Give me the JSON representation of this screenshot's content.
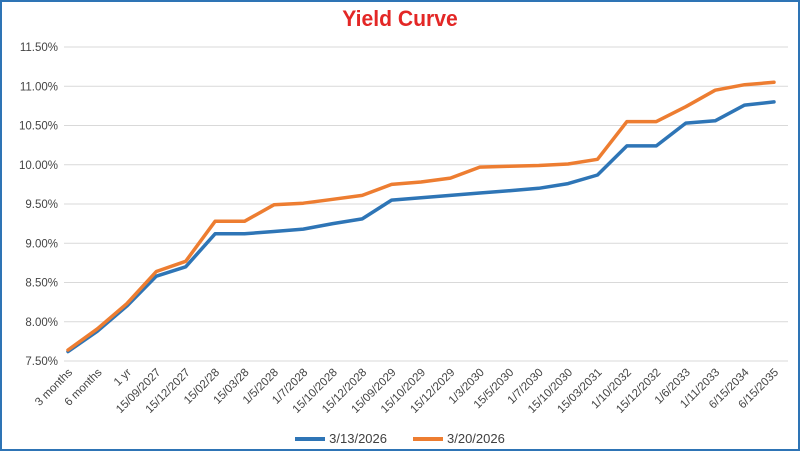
{
  "chart": {
    "title_color": "#E32726",
    "border_color": "#2E74B5",
    "grid_color": "#D9D9D9",
    "axis_label_color": "#444444"
  },
  "chart_data": {
    "type": "line",
    "title": "Yield Curve",
    "xlabel": "",
    "ylabel": "",
    "ylim": [
      7.5,
      11.5
    ],
    "ytick_step": 0.5,
    "ytick_labels": [
      "11.50%",
      "11.00%",
      "10.50%",
      "10.00%",
      "9.50%",
      "9.00%",
      "8.50%",
      "8.00%",
      "7.50%"
    ],
    "grid": true,
    "legend_position": "bottom",
    "categories": [
      "3 months",
      "6 months",
      "1 yr",
      "15/09/2027",
      "15/12/2027",
      "15/02/28",
      "15/03/28",
      "1/5/2028",
      "1/7/2028",
      "15/10/2028",
      "15/12/2028",
      "15/09/2029",
      "15/10/2029",
      "15/12/2029",
      "1/3/2030",
      "15/5/2030",
      "1/7/2030",
      "15/10/2030",
      "15/03/2031",
      "1/10/2032",
      "15/12/2032",
      "1/6/2033",
      "1/11/2033",
      "6/15/2034",
      "6/15/2035"
    ],
    "series": [
      {
        "name": "3/13/2026",
        "color": "#2E75B6",
        "values": [
          7.62,
          7.88,
          8.2,
          8.58,
          8.7,
          9.12,
          9.12,
          9.15,
          9.18,
          9.25,
          9.31,
          9.55,
          9.58,
          9.61,
          9.64,
          9.67,
          9.7,
          9.76,
          9.87,
          10.24,
          10.24,
          10.53,
          10.56,
          10.76,
          10.8
        ]
      },
      {
        "name": "3/20/2026",
        "color": "#ED7D31",
        "values": [
          7.64,
          7.91,
          8.23,
          8.64,
          8.77,
          9.28,
          9.28,
          9.49,
          9.51,
          9.56,
          9.61,
          9.75,
          9.78,
          9.83,
          9.97,
          9.98,
          9.99,
          10.01,
          10.07,
          10.55,
          10.55,
          10.74,
          10.95,
          11.02,
          11.05
        ]
      }
    ]
  }
}
